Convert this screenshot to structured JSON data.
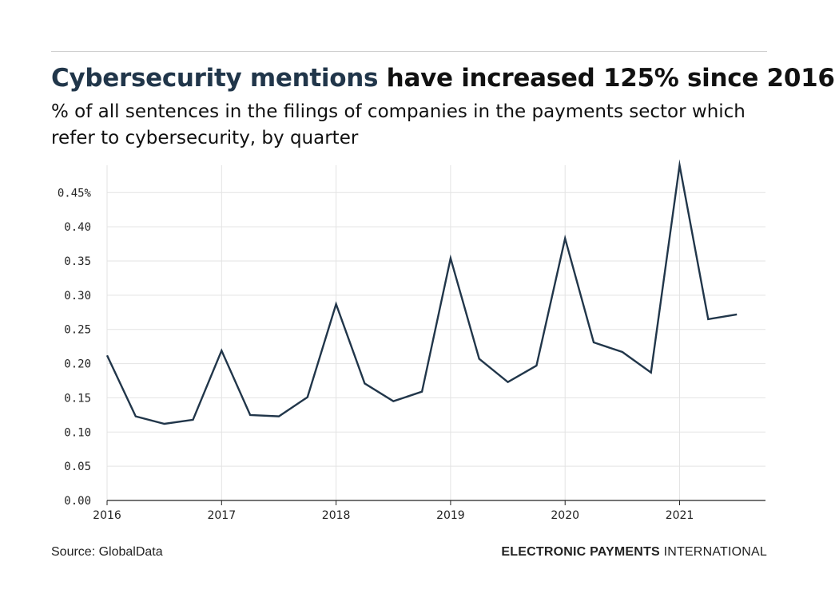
{
  "headline": {
    "highlight": "Cybersecurity mentions",
    "rest": " have increased 125% since 2016"
  },
  "subtitle": "% of all sentences in the filings of companies in the payments sector which refer to cybersecurity, by quarter",
  "footer": {
    "source": "Source: GlobalData",
    "brand_bold": "ELECTRONIC PAYMENTS",
    "brand_light": " INTERNATIONAL"
  },
  "colors": {
    "line": "#21364a",
    "grid": "#e3e3e3",
    "axis": "#222222",
    "headline_accent": "#21364a"
  },
  "chart_data": {
    "type": "line",
    "title": "Cybersecurity mentions have increased 125% since 2016",
    "subtitle": "% of all sentences in the filings of companies in the payments sector which refer to cybersecurity, by quarter",
    "xlabel": "",
    "ylabel": "",
    "ylim": [
      0,
      0.49
    ],
    "xlim": [
      2016,
      2021.75
    ],
    "grid": true,
    "yticks": [
      {
        "value": 0.0,
        "label": "0.00"
      },
      {
        "value": 0.05,
        "label": "0.05"
      },
      {
        "value": 0.1,
        "label": "0.10"
      },
      {
        "value": 0.15,
        "label": "0.15"
      },
      {
        "value": 0.2,
        "label": "0.20"
      },
      {
        "value": 0.25,
        "label": "0.25"
      },
      {
        "value": 0.3,
        "label": "0.30"
      },
      {
        "value": 0.35,
        "label": "0.35"
      },
      {
        "value": 0.4,
        "label": "0.40"
      },
      {
        "value": 0.45,
        "label": "0.45%"
      }
    ],
    "xticks": [
      {
        "value": 2016,
        "label": "2016"
      },
      {
        "value": 2017,
        "label": "2017"
      },
      {
        "value": 2018,
        "label": "2018"
      },
      {
        "value": 2019,
        "label": "2019"
      },
      {
        "value": 2020,
        "label": "2020"
      },
      {
        "value": 2021,
        "label": "2021"
      }
    ],
    "series": [
      {
        "x": [
          "2016 Q1",
          "2016 Q2",
          "2016 Q3",
          "2016 Q4",
          "2017 Q1",
          "2017 Q2",
          "2017 Q3",
          "2017 Q4",
          "2018 Q1",
          "2018 Q2",
          "2018 Q3",
          "2018 Q4",
          "2019 Q1",
          "2019 Q2",
          "2019 Q3",
          "2019 Q4",
          "2020 Q1",
          "2020 Q2",
          "2020 Q3",
          "2020 Q4",
          "2021 Q1",
          "2021 Q2",
          "2021 Q3"
        ],
        "values": [
          0.212,
          0.123,
          0.112,
          0.118,
          0.219,
          0.125,
          0.123,
          0.151,
          0.287,
          0.171,
          0.145,
          0.159,
          0.354,
          0.207,
          0.173,
          0.197,
          0.383,
          0.231,
          0.217,
          0.187,
          0.49,
          0.265,
          0.272
        ]
      }
    ]
  }
}
